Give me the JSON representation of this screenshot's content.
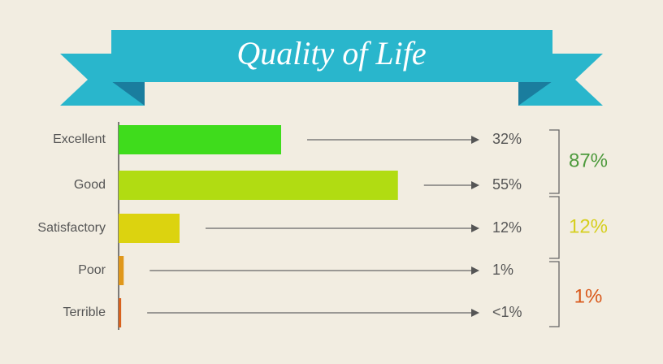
{
  "chart_data": {
    "type": "bar",
    "orientation": "horizontal",
    "title": "Quality of Life",
    "categories": [
      "Excellent",
      "Good",
      "Satisfactory",
      "Poor",
      "Terrible"
    ],
    "values": [
      32,
      55,
      12,
      1,
      0.5
    ],
    "value_labels": [
      "32%",
      "55%",
      "12%",
      "1%",
      "<1%"
    ],
    "colors": [
      "#3fdc1c",
      "#b1dc12",
      "#dcd30f",
      "#e0981b",
      "#d8621e"
    ],
    "groups": [
      {
        "label": "87%",
        "color": "#4d9a3c"
      },
      {
        "label": "12%",
        "color": "#d6cf1f"
      },
      {
        "label": "1%",
        "color": "#d9591b"
      }
    ]
  }
}
